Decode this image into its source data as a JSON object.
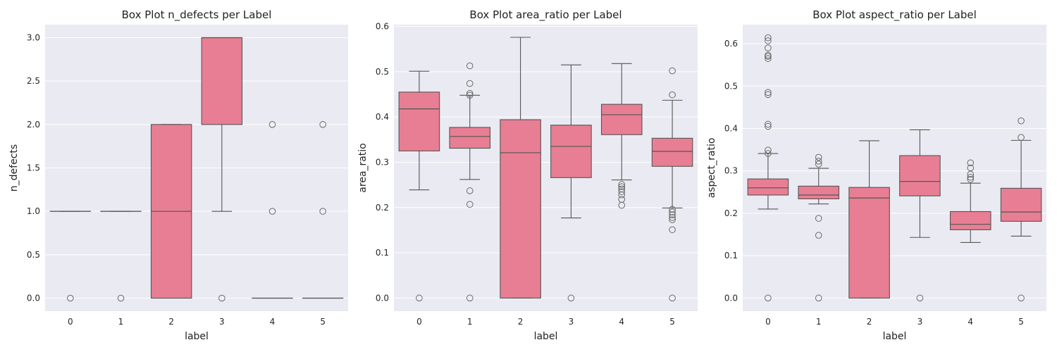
{
  "chart_data": [
    {
      "type": "box",
      "title": "Box Plot n_defects per Label",
      "xlabel": "label",
      "ylabel": "n_defects",
      "ylim": [
        -0.15,
        3.15
      ],
      "yticks": [
        "0.0",
        "0.5",
        "1.0",
        "1.5",
        "2.0",
        "2.5",
        "3.0"
      ],
      "categories": [
        "0",
        "1",
        "2",
        "3",
        "4",
        "5"
      ],
      "box_color": "#e87e93",
      "boxes": [
        {
          "label": "0",
          "whisker_low": 1.0,
          "q1": 1.0,
          "median": 1.0,
          "q3": 1.0,
          "whisker_high": 1.0,
          "outliers": [
            0.0
          ]
        },
        {
          "label": "1",
          "whisker_low": 1.0,
          "q1": 1.0,
          "median": 1.0,
          "q3": 1.0,
          "whisker_high": 1.0,
          "outliers": [
            0.0
          ]
        },
        {
          "label": "2",
          "whisker_low": 0.0,
          "q1": 0.0,
          "median": 1.0,
          "q3": 2.0,
          "whisker_high": 2.0,
          "outliers": []
        },
        {
          "label": "3",
          "whisker_low": 1.0,
          "q1": 2.0,
          "median": 3.0,
          "q3": 3.0,
          "whisker_high": 3.0,
          "outliers": [
            0.0
          ]
        },
        {
          "label": "4",
          "whisker_low": 0.0,
          "q1": 0.0,
          "median": 0.0,
          "q3": 0.0,
          "whisker_high": 0.0,
          "outliers": [
            1.0,
            2.0
          ]
        },
        {
          "label": "5",
          "whisker_low": 0.0,
          "q1": 0.0,
          "median": 0.0,
          "q3": 0.0,
          "whisker_high": 0.0,
          "outliers": [
            1.0,
            2.0
          ]
        }
      ]
    },
    {
      "type": "box",
      "title": "Box Plot area_ratio per Label",
      "xlabel": "label",
      "ylabel": "area_ratio",
      "ylim": [
        -0.029,
        0.604
      ],
      "yticks": [
        "0.0",
        "0.1",
        "0.2",
        "0.3",
        "0.4",
        "0.5",
        "0.6"
      ],
      "categories": [
        "0",
        "1",
        "2",
        "3",
        "4",
        "5"
      ],
      "box_color": "#e87e93",
      "boxes": [
        {
          "label": "0",
          "whisker_low": 0.239,
          "q1": 0.325,
          "median": 0.418,
          "q3": 0.455,
          "whisker_high": 0.501,
          "outliers": [
            0.0
          ]
        },
        {
          "label": "1",
          "whisker_low": 0.262,
          "q1": 0.331,
          "median": 0.357,
          "q3": 0.377,
          "whisker_high": 0.448,
          "outliers": [
            0.0,
            0.207,
            0.237,
            0.448,
            0.452,
            0.474,
            0.513
          ]
        },
        {
          "label": "2",
          "whisker_low": 0.0,
          "q1": 0.0,
          "median": 0.321,
          "q3": 0.394,
          "whisker_high": 0.576,
          "outliers": []
        },
        {
          "label": "3",
          "whisker_low": 0.177,
          "q1": 0.266,
          "median": 0.335,
          "q3": 0.382,
          "whisker_high": 0.515,
          "outliers": [
            0.0
          ]
        },
        {
          "label": "4",
          "whisker_low": 0.261,
          "q1": 0.361,
          "median": 0.405,
          "q3": 0.428,
          "whisker_high": 0.518,
          "outliers": [
            0.205,
            0.218,
            0.228,
            0.235,
            0.241,
            0.246,
            0.251
          ]
        },
        {
          "label": "5",
          "whisker_low": 0.199,
          "q1": 0.291,
          "median": 0.324,
          "q3": 0.353,
          "whisker_high": 0.437,
          "outliers": [
            0.0,
            0.151,
            0.173,
            0.178,
            0.184,
            0.19,
            0.196,
            0.449,
            0.502
          ]
        }
      ]
    },
    {
      "type": "box",
      "title": "Box Plot aspect_ratio per Label",
      "xlabel": "label",
      "ylabel": "aspect_ratio",
      "ylim": [
        -0.031,
        0.645
      ],
      "yticks": [
        "0.0",
        "0.1",
        "0.2",
        "0.3",
        "0.4",
        "0.5",
        "0.6"
      ],
      "categories": [
        "0",
        "1",
        "2",
        "3",
        "4",
        "5"
      ],
      "box_color": "#e87e93",
      "boxes": [
        {
          "label": "0",
          "whisker_low": 0.21,
          "q1": 0.243,
          "median": 0.26,
          "q3": 0.281,
          "whisker_high": 0.341,
          "outliers": [
            0.0,
            0.341,
            0.349,
            0.405,
            0.41,
            0.48,
            0.485,
            0.565,
            0.57,
            0.573,
            0.59,
            0.607,
            0.614
          ]
        },
        {
          "label": "1",
          "whisker_low": 0.222,
          "q1": 0.234,
          "median": 0.243,
          "q3": 0.264,
          "whisker_high": 0.306,
          "outliers": [
            0.0,
            0.148,
            0.188,
            0.316,
            0.323,
            0.332
          ]
        },
        {
          "label": "2",
          "whisker_low": 0.0,
          "q1": 0.0,
          "median": 0.236,
          "q3": 0.261,
          "whisker_high": 0.371,
          "outliers": []
        },
        {
          "label": "3",
          "whisker_low": 0.143,
          "q1": 0.241,
          "median": 0.275,
          "q3": 0.336,
          "whisker_high": 0.397,
          "outliers": [
            0.0
          ]
        },
        {
          "label": "4",
          "whisker_low": 0.131,
          "q1": 0.161,
          "median": 0.174,
          "q3": 0.204,
          "whisker_high": 0.271,
          "outliers": [
            0.28,
            0.285,
            0.292,
            0.307,
            0.319
          ]
        },
        {
          "label": "5",
          "whisker_low": 0.146,
          "q1": 0.181,
          "median": 0.203,
          "q3": 0.259,
          "whisker_high": 0.372,
          "outliers": [
            0.0,
            0.379,
            0.418
          ]
        }
      ]
    }
  ]
}
